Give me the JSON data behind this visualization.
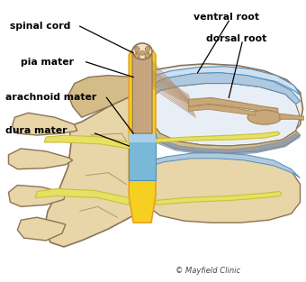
{
  "copyright": "© Mayfield Clinic",
  "background_color": "#ffffff",
  "labels": {
    "spinal_cord": "spinal cord",
    "pia_mater": "pia mater",
    "arachnoid_mater": "arachnoid mater",
    "dura_mater": "dura mater",
    "ventral_root": "ventral root",
    "dorsal_root": "dorsal root"
  },
  "colors": {
    "bone": "#e8d5a8",
    "bone_mid": "#d4bc88",
    "bone_dark": "#c4a870",
    "bone_outline": "#8B7355",
    "cord_outer": "#c8a882",
    "cord_inner": "#f0e0c8",
    "cord_gray_matter": "#c8a068",
    "dura_yellow": "#f5d020",
    "dura_yellow2": "#e8b800",
    "dura_orange": "#e8a020",
    "arachnoid_blue": "#7ab8d8",
    "arachnoid_blue_light": "#a8d0e8",
    "arachnoid_blue_dark": "#5090b8",
    "nerve_tan": "#c8a878",
    "nerve_tan_dark": "#a88858",
    "nerve_fibers": "#b89868",
    "yellow_nerve": "#e8e060",
    "yellow_nerve_dark": "#c8c040",
    "disc_blue": "#b0c8e0",
    "disc_blue_light": "#d0e0f0",
    "disc_white": "#e8eef5",
    "vertebra_disc_blue": "#8090b0",
    "text_black": "#000000",
    "line_black": "#1a1a1a"
  },
  "figsize": [
    3.4,
    3.13
  ],
  "dpi": 100
}
